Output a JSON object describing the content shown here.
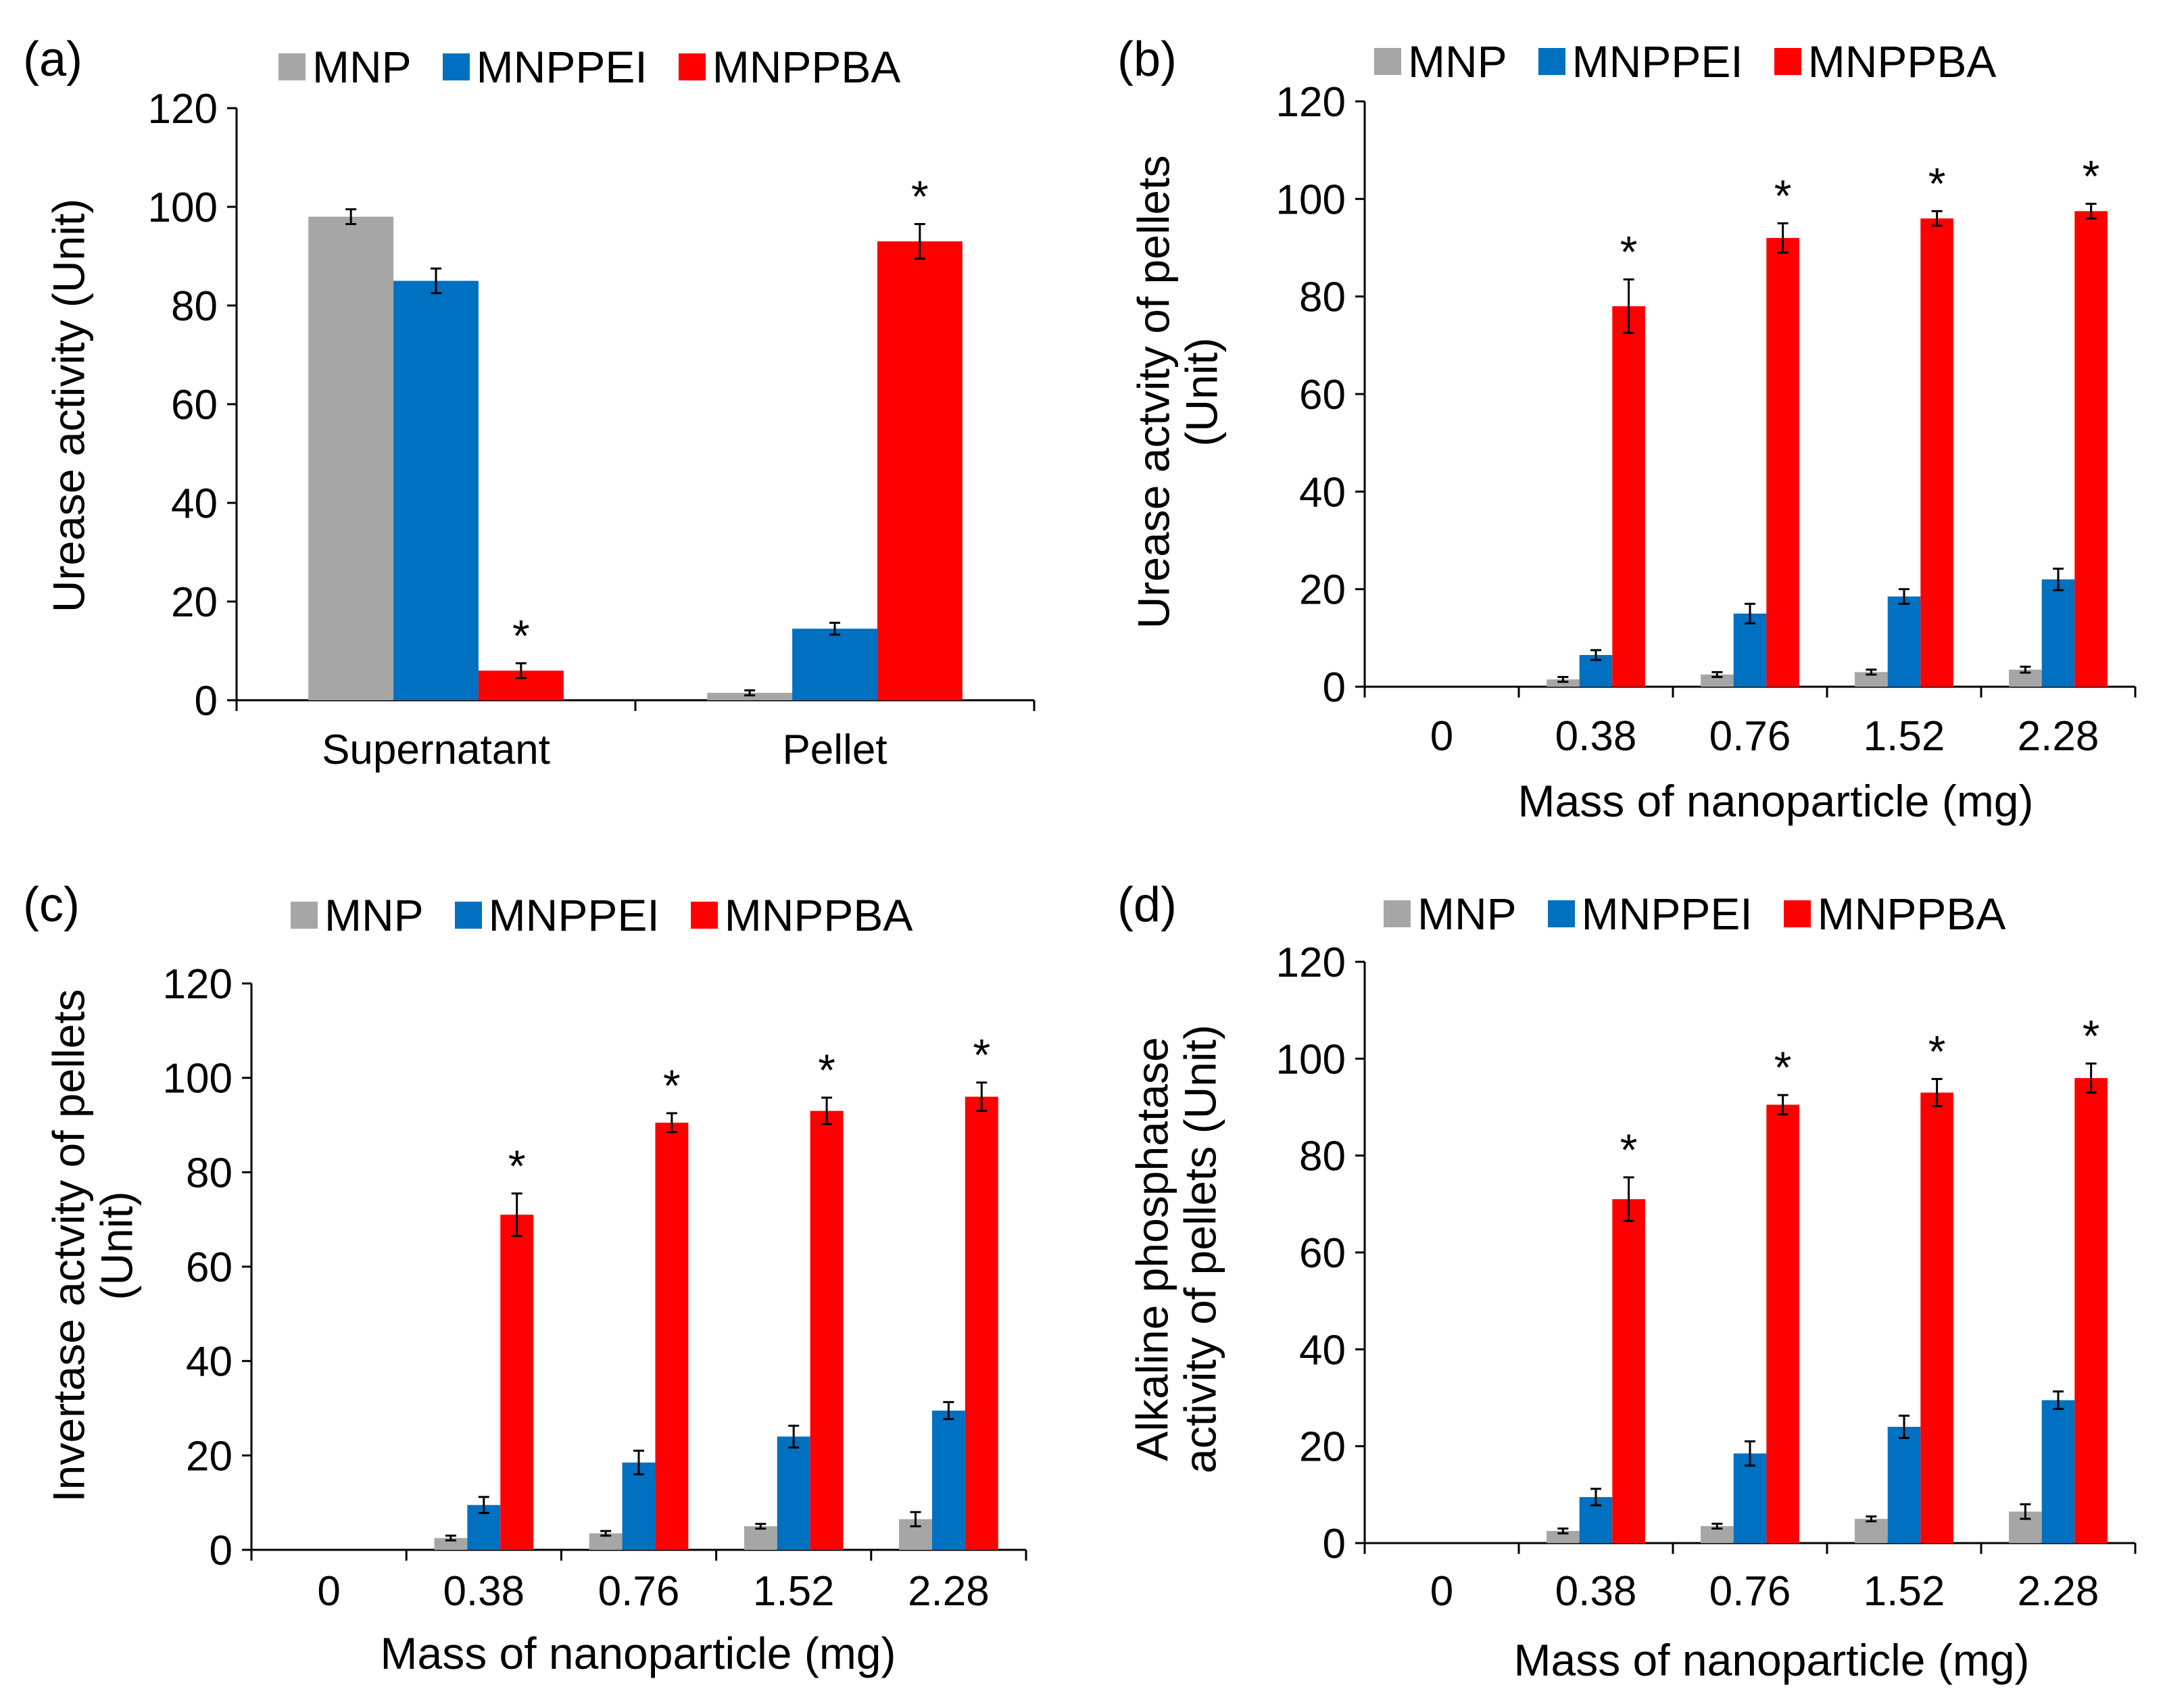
{
  "colors": {
    "MNP": "#a6a6a6",
    "MNPPEI": "#0070c0",
    "MNPPBA": "#ff0000",
    "axis": "#000000"
  },
  "chart_data": [
    {
      "panel": "(a)",
      "type": "bar",
      "categories": [
        "Supernatant",
        "Pellet"
      ],
      "series": [
        {
          "name": "MNP",
          "values": [
            98,
            1.5
          ],
          "errors": [
            1.5,
            0.5
          ]
        },
        {
          "name": "MNPPEI",
          "values": [
            85,
            14.5
          ],
          "errors": [
            2.5,
            1.2
          ]
        },
        {
          "name": "MNPPBA",
          "values": [
            6,
            93
          ],
          "errors": [
            1.5,
            3.5
          ]
        }
      ],
      "stars": [
        [
          false,
          false,
          true
        ],
        [
          false,
          false,
          true
        ]
      ],
      "star_symbol": "*",
      "ylabel": [
        "Urease activity (Unit)"
      ],
      "xlabel": "",
      "ylim": [
        0,
        120
      ],
      "yticks": [
        "0",
        "20",
        "40",
        "60",
        "80",
        "100",
        "120"
      ],
      "legend": [
        "MNP",
        "MNPPEI",
        "MNPPBA"
      ]
    },
    {
      "panel": "(b)",
      "type": "bar",
      "categories": [
        "0",
        "0.38",
        "0.76",
        "1.52",
        "2.28"
      ],
      "series": [
        {
          "name": "MNP",
          "values": [
            0,
            1.5,
            2.5,
            3,
            3.5
          ],
          "errors": [
            0,
            0.5,
            0.5,
            0.5,
            0.6
          ]
        },
        {
          "name": "MNPPEI",
          "values": [
            0,
            6.5,
            15,
            18.5,
            22
          ],
          "errors": [
            0,
            1,
            2,
            1.5,
            2.2
          ]
        },
        {
          "name": "MNPPBA",
          "values": [
            0,
            78,
            92,
            96,
            97.5
          ],
          "errors": [
            0,
            5.5,
            3,
            1.5,
            1.5
          ]
        }
      ],
      "stars": [
        [
          false,
          false,
          false
        ],
        [
          false,
          false,
          true
        ],
        [
          false,
          false,
          true
        ],
        [
          false,
          false,
          true
        ],
        [
          false,
          false,
          true
        ]
      ],
      "star_symbol": "*",
      "ylabel": [
        "Urease actvity of pellets",
        "(Unit)"
      ],
      "xlabel": "Mass of nanoparticle (mg)",
      "ylim": [
        0,
        120
      ],
      "yticks": [
        "0",
        "20",
        "40",
        "60",
        "80",
        "100",
        "120"
      ],
      "legend": [
        "MNP",
        "MNPPEI",
        "MNPPBA"
      ]
    },
    {
      "panel": "(c)",
      "type": "bar",
      "categories": [
        "0",
        "0.38",
        "0.76",
        "1.52",
        "2.28"
      ],
      "series": [
        {
          "name": "MNP",
          "values": [
            0,
            2.5,
            3.5,
            5,
            6.5
          ],
          "errors": [
            0,
            0.5,
            0.5,
            0.5,
            1.5
          ]
        },
        {
          "name": "MNPPEI",
          "values": [
            0,
            9.5,
            18.5,
            24,
            29.5
          ],
          "errors": [
            0,
            1.7,
            2.5,
            2.3,
            1.8
          ]
        },
        {
          "name": "MNPPBA",
          "values": [
            0,
            71,
            90.5,
            93,
            96
          ],
          "errors": [
            0,
            4.5,
            2,
            2.8,
            3
          ]
        }
      ],
      "stars": [
        [
          false,
          false,
          false
        ],
        [
          false,
          false,
          true
        ],
        [
          false,
          false,
          true
        ],
        [
          false,
          false,
          true
        ],
        [
          false,
          false,
          true
        ]
      ],
      "star_symbol": "*",
      "ylabel": [
        "Invertase actvity of pellets",
        "(Unit)"
      ],
      "xlabel": "Mass of nanoparticle (mg)",
      "ylim": [
        0,
        120
      ],
      "yticks": [
        "0",
        "20",
        "40",
        "60",
        "80",
        "100",
        "120"
      ],
      "legend": [
        "MNP",
        "MNPPEI",
        "MNPPBA"
      ]
    },
    {
      "panel": "(d)",
      "type": "bar",
      "categories": [
        "0",
        "0.38",
        "0.76",
        "1.52",
        "2.28"
      ],
      "series": [
        {
          "name": "MNP",
          "values": [
            0,
            2.5,
            3.5,
            5,
            6.5
          ],
          "errors": [
            0,
            0.5,
            0.5,
            0.5,
            1.5
          ]
        },
        {
          "name": "MNPPEI",
          "values": [
            0,
            9.5,
            18.5,
            24,
            29.5
          ],
          "errors": [
            0,
            1.7,
            2.5,
            2.3,
            1.8
          ]
        },
        {
          "name": "MNPPBA",
          "values": [
            0,
            71,
            90.5,
            93,
            96
          ],
          "errors": [
            0,
            4.5,
            2,
            2.8,
            3
          ]
        }
      ],
      "stars": [
        [
          false,
          false,
          false
        ],
        [
          false,
          false,
          true
        ],
        [
          false,
          false,
          true
        ],
        [
          false,
          false,
          true
        ],
        [
          false,
          false,
          true
        ]
      ],
      "star_symbol": "*",
      "ylabel": [
        "Alkaline phosphatase",
        "activity of pellets (Unit)"
      ],
      "xlabel": "Mass of nanoparticle (mg)",
      "ylim": [
        0,
        120
      ],
      "yticks": [
        "0",
        "20",
        "40",
        "60",
        "80",
        "100",
        "120"
      ],
      "legend": [
        "MNP",
        "MNPPEI",
        "MNPPBA"
      ]
    }
  ]
}
